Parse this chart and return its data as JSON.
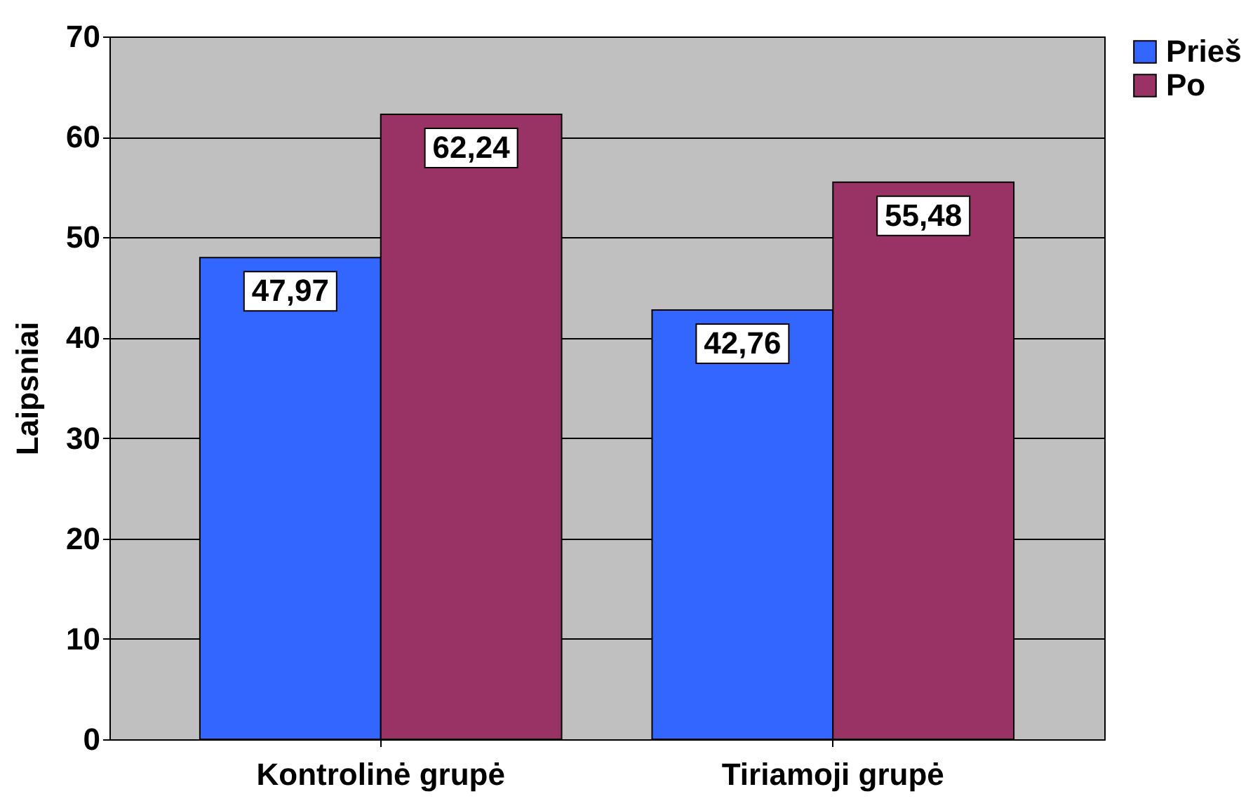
{
  "chart_data": {
    "type": "bar",
    "ylabel": "Laipsniai",
    "categories": [
      "Kontrolinė grupė",
      "Tiriamoji grupė"
    ],
    "series": [
      {
        "name": "Prieš",
        "color": "#3366ff",
        "values": [
          47.97,
          42.76
        ],
        "value_labels": [
          "47,97",
          "42,76"
        ]
      },
      {
        "name": "Po",
        "color": "#993366",
        "values": [
          62.24,
          55.48
        ],
        "value_labels": [
          "62,24",
          "55,48"
        ]
      }
    ],
    "ylim": [
      0,
      70
    ],
    "yticks": [
      0,
      10,
      20,
      30,
      40,
      50,
      60,
      70
    ],
    "grid": "y",
    "legend": "right"
  }
}
